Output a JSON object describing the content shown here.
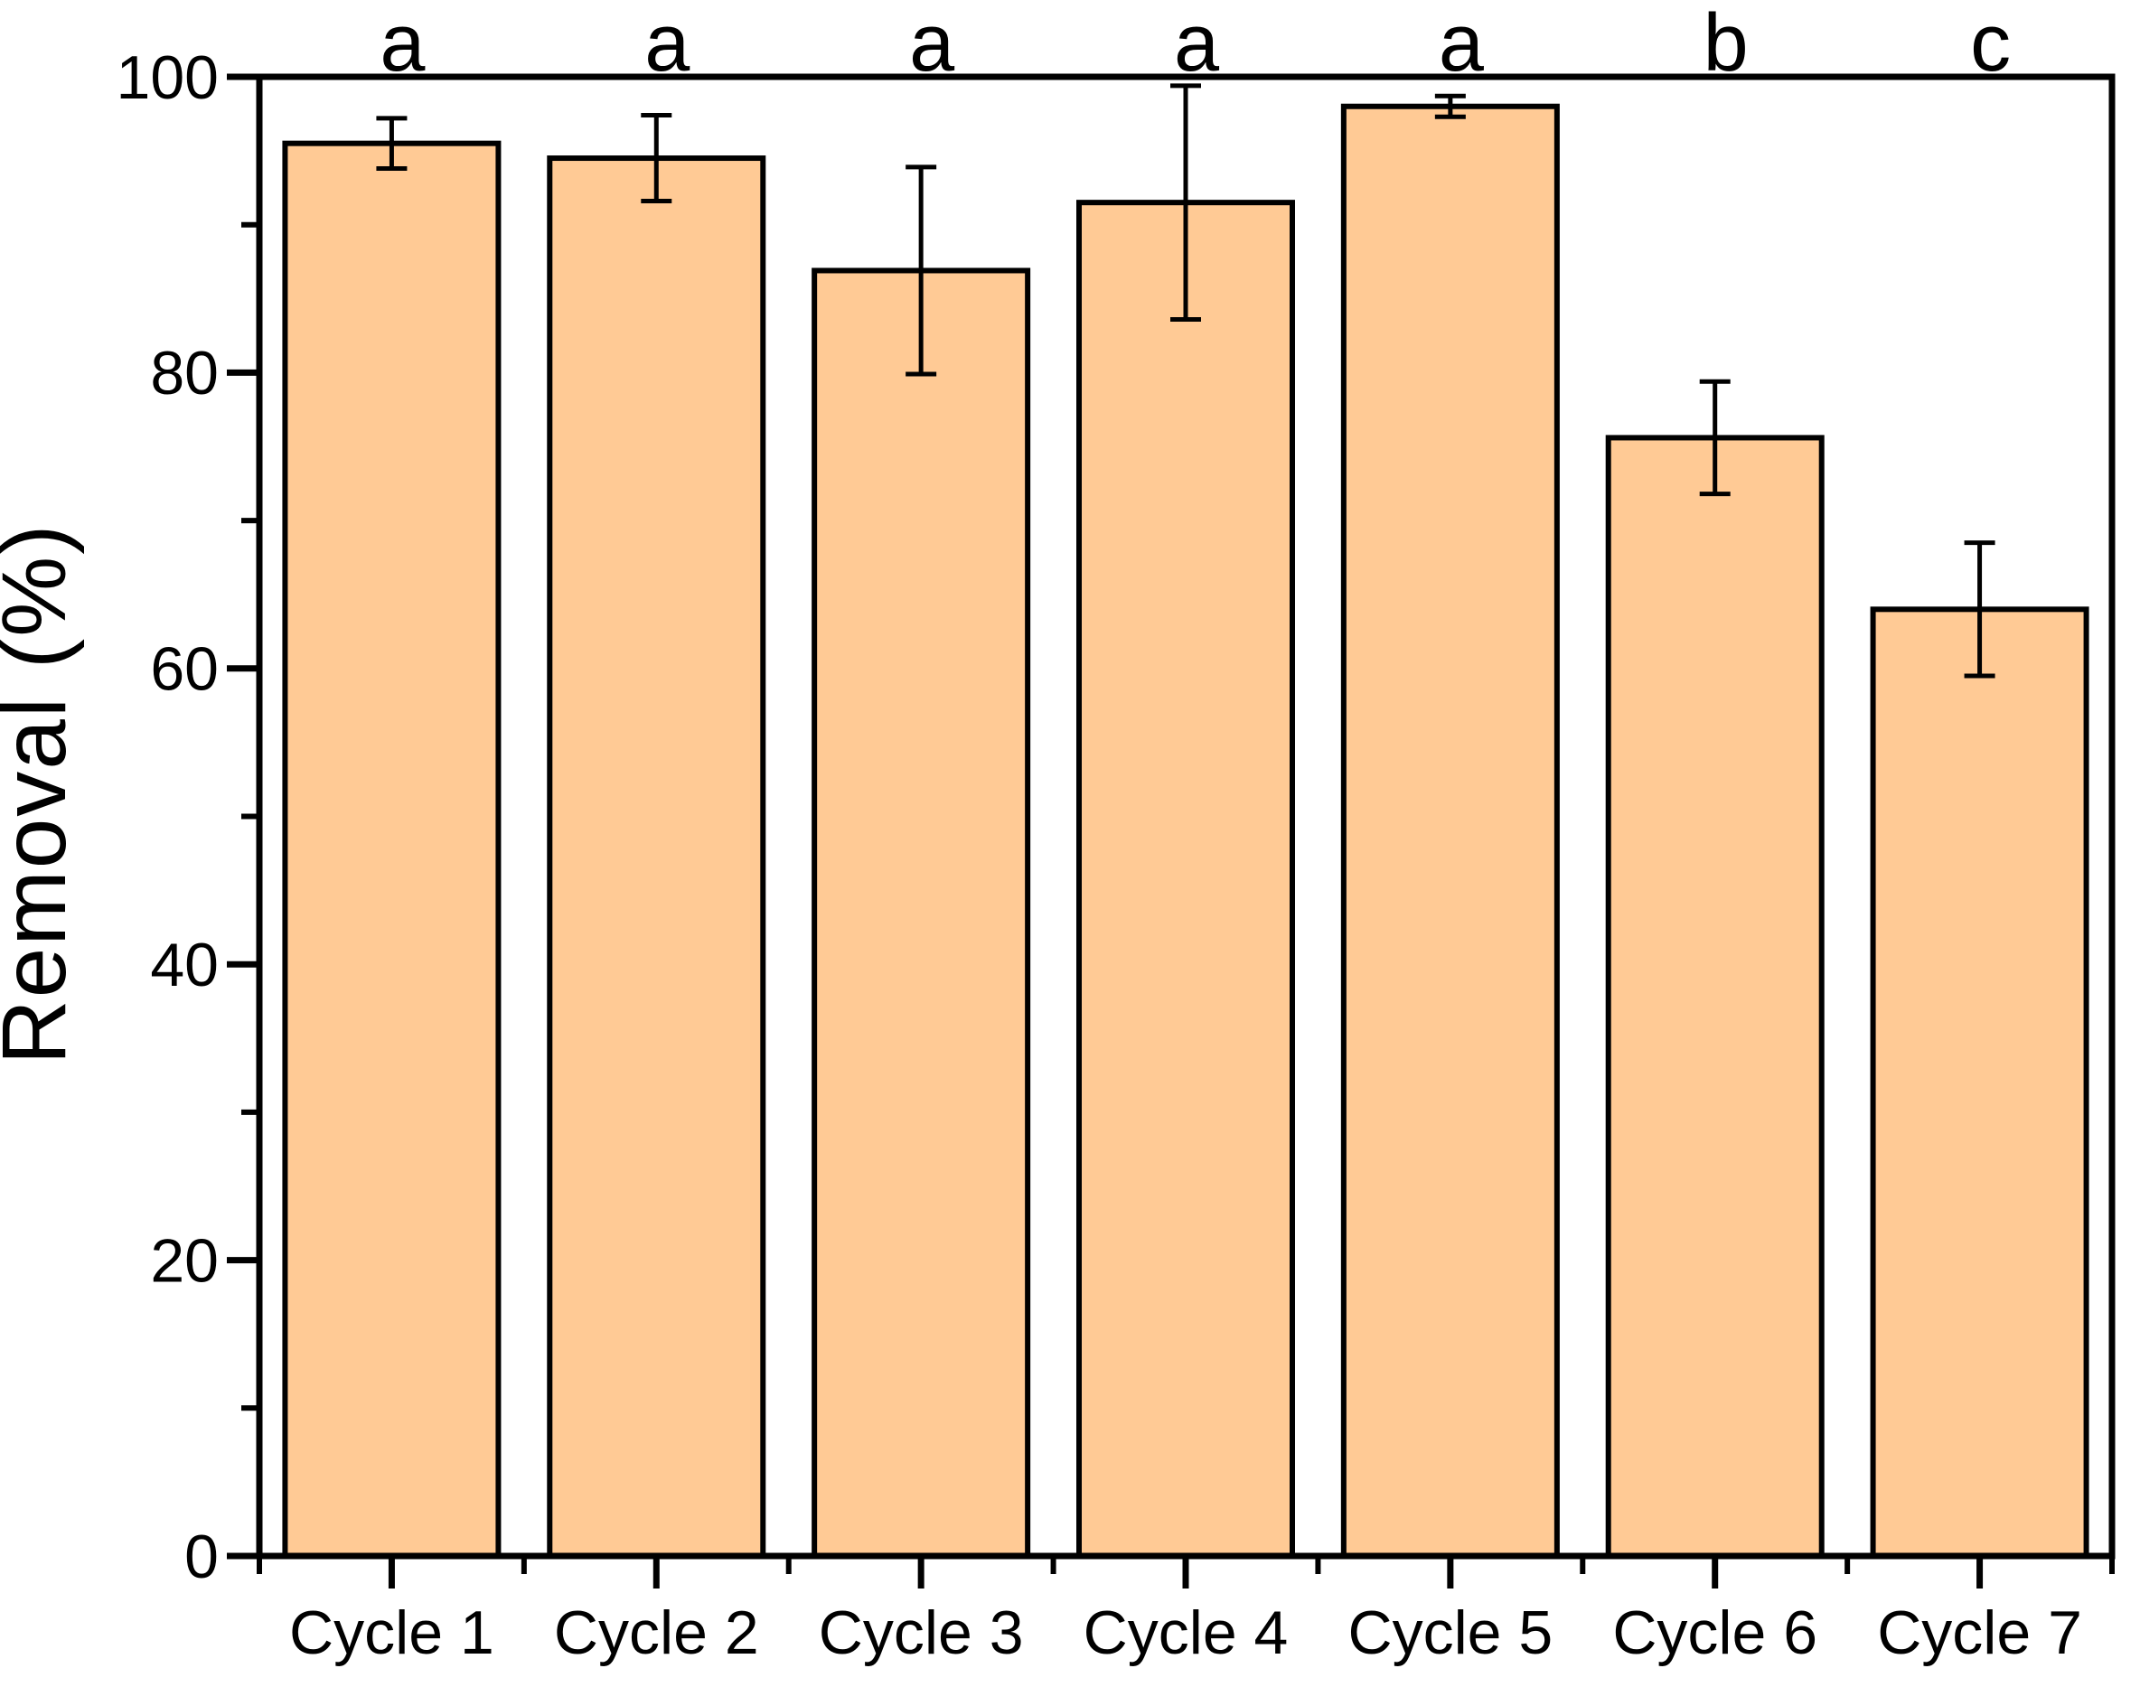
{
  "chart_data": {
    "type": "bar",
    "title": "",
    "xlabel": "",
    "ylabel": "Removal (%)",
    "categories": [
      "Cycle 1",
      "Cycle 2",
      "Cycle 3",
      "Cycle 4",
      "Cycle 5",
      "Cycle 6",
      "Cycle 7"
    ],
    "series": [
      {
        "name": "Removal",
        "values": [
          95.5,
          94.5,
          86.9,
          91.5,
          98.0,
          75.6,
          64.0
        ],
        "errors": [
          1.7,
          2.9,
          7.0,
          7.9,
          0.7,
          3.8,
          4.5
        ]
      }
    ],
    "significance_letters": [
      "a",
      "a",
      "a",
      "a",
      "a",
      "b",
      "c"
    ],
    "ylim": [
      0,
      100
    ],
    "y_major_ticks": [
      0,
      20,
      40,
      60,
      80,
      100
    ],
    "y_minor_ticks": [
      10,
      30,
      50,
      70,
      90
    ],
    "grid": false,
    "legend": "none",
    "frame": "full-box",
    "colors": {
      "bar_fill": "#FFCA95",
      "bar_border": "#000000",
      "error_bar": "#000000",
      "axis": "#000000",
      "text": "#000000",
      "background": "#ffffff"
    }
  }
}
